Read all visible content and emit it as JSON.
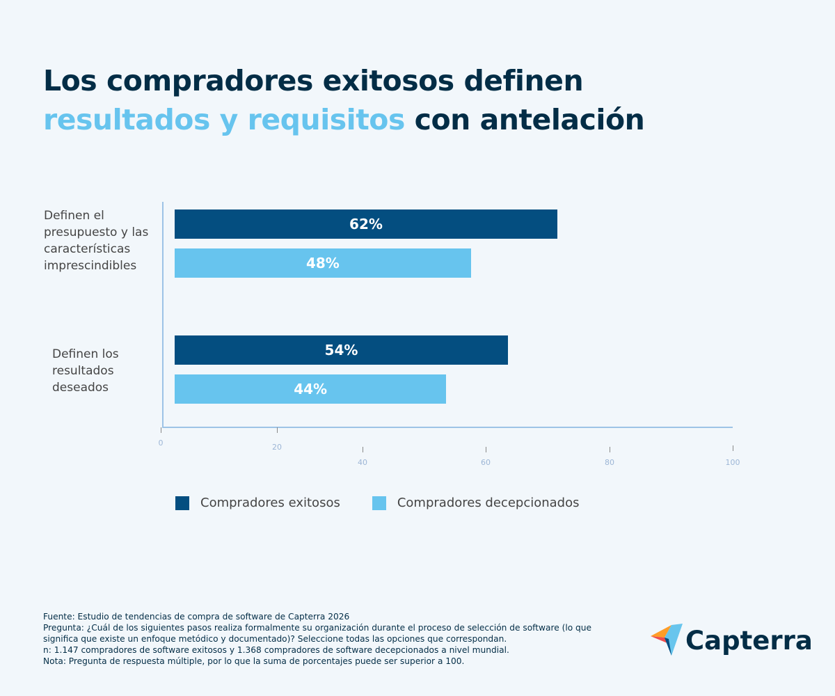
{
  "title": {
    "line1": "Los compradores exitosos definen",
    "highlight": "resultados y requisitos",
    "rest": " con antelación"
  },
  "chart_data": {
    "type": "bar",
    "orientation": "horizontal",
    "categories": [
      "Definen el presupuesto y las características imprescindibles",
      "Definen los resultados deseados"
    ],
    "category_lines": [
      [
        "Definen el",
        "presupuesto y las",
        "características",
        "imprescindibles"
      ],
      [
        "Definen los",
        "resultados",
        "deseados"
      ]
    ],
    "series": [
      {
        "name": "Compradores exitosos",
        "values": [
          62,
          54
        ],
        "labels": [
          "62%",
          "54%"
        ],
        "color": "#044e80"
      },
      {
        "name": "Compradores decepcionados",
        "values": [
          48,
          44
        ],
        "labels": [
          "48%",
          "44%"
        ],
        "color": "#67c4ee"
      }
    ],
    "xlim": [
      0,
      100
    ],
    "xticks": [
      "0",
      "20",
      "40",
      "60",
      "80",
      "100"
    ],
    "grid": false,
    "legend": "bottom"
  },
  "footer": [
    "Fuente: Estudio de tendencias de compra de software de Capterra 2026",
    "Pregunta: ¿Cuál de los siguientes pasos realiza formalmente su organización durante el proceso de selección de software (lo que significa que existe un enfoque metódico y documentado)? Seleccione todas las opciones que correspondan.",
    "n: 1.147 compradores de software exitosos y 1.368 compradores de software decepcionados a nivel mundial.",
    "Nota: Pregunta de respuesta múltiple, por lo que la suma de porcentajes puede ser superior a 100."
  ],
  "logo": {
    "text": "Capterra"
  }
}
